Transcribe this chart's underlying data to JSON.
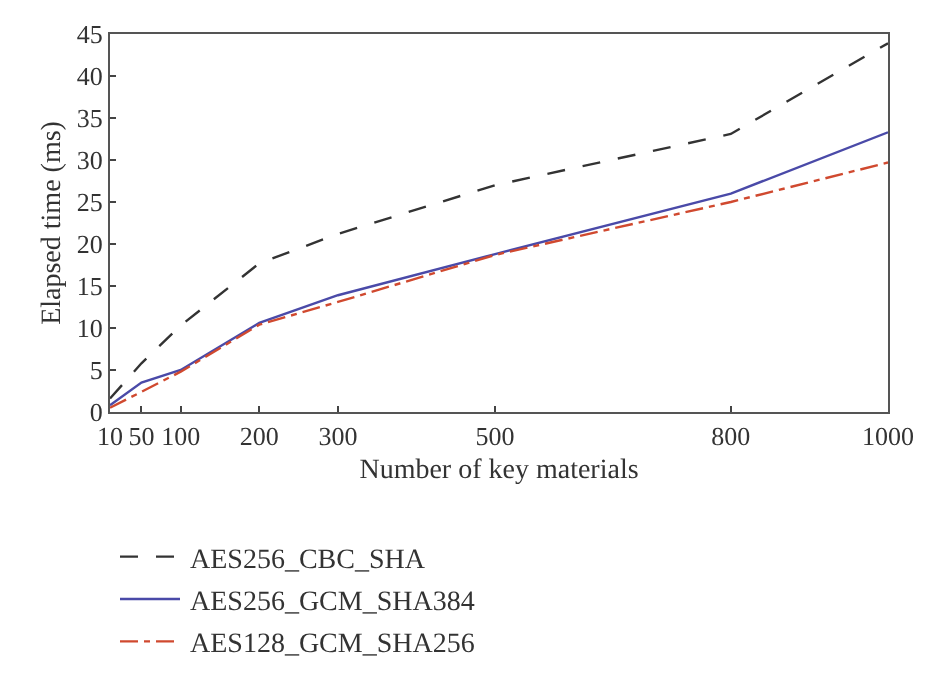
{
  "chart_data": {
    "type": "line",
    "xlabel": "Number of key materials",
    "ylabel": "Elapsed time (ms)",
    "x": [
      10,
      50,
      100,
      200,
      300,
      500,
      800,
      1000
    ],
    "xlim": [
      10,
      1000
    ],
    "xticks": [
      10,
      50,
      100,
      200,
      300,
      500,
      800,
      1000
    ],
    "ylim": [
      0,
      45
    ],
    "yticks": [
      0,
      5,
      10,
      15,
      20,
      25,
      30,
      35,
      40,
      45
    ],
    "legend": "bottom",
    "marker": "none",
    "series": [
      {
        "name": "AES256_CBC_SHA",
        "color": "#333333",
        "line_style": "dashed",
        "values": [
          1.6,
          5.8,
          10.3,
          17.7,
          21.2,
          27.0,
          33.1,
          43.9
        ]
      },
      {
        "name": "AES256_GCM_SHA384",
        "color": "#4a4aa8",
        "line_style": "solid",
        "values": [
          0.8,
          3.5,
          5.0,
          10.6,
          13.9,
          18.8,
          26.0,
          33.3
        ]
      },
      {
        "name": "AES128_GCM_SHA256",
        "color": "#d0492f",
        "line_style": "dashdot",
        "values": [
          0.5,
          2.4,
          4.8,
          10.4,
          13.1,
          18.7,
          25.0,
          29.7
        ]
      }
    ]
  }
}
